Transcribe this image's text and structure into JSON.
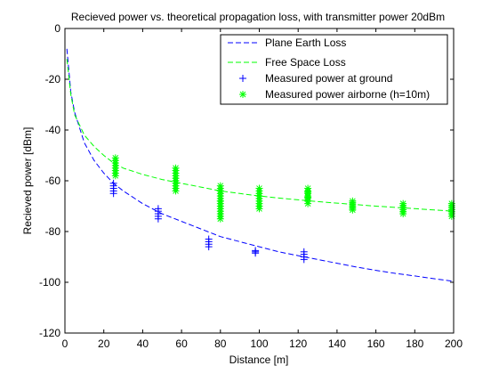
{
  "chart_data": {
    "type": "line",
    "title": "Recieved power vs. theoretical propagation loss, with transmitter power 20dBm",
    "xlabel": "Distance [m]",
    "ylabel": "Recieved power [dBm]",
    "xlim": [
      0,
      200
    ],
    "ylim": [
      -120,
      0
    ],
    "xticks": [
      0,
      20,
      40,
      60,
      80,
      100,
      120,
      140,
      160,
      180,
      200
    ],
    "yticks": [
      0,
      -20,
      -40,
      -60,
      -80,
      -100,
      -120
    ],
    "grid": false,
    "legend_position": "top-right",
    "series": [
      {
        "name": "Plane Earth Loss",
        "kind": "line",
        "style": "dashed",
        "color": "#0000ff",
        "x": [
          1,
          3,
          5,
          10,
          15,
          20,
          25,
          30,
          40,
          50,
          60,
          70,
          80,
          90,
          100,
          110,
          120,
          130,
          140,
          150,
          160,
          170,
          180,
          190,
          200
        ],
        "y": [
          -8,
          -25,
          -33,
          -45,
          -52,
          -57,
          -61,
          -64,
          -69,
          -73,
          -76,
          -79,
          -82,
          -84,
          -86,
          -88,
          -89.5,
          -91,
          -92.5,
          -94,
          -95.3,
          -96.5,
          -97.5,
          -98.6,
          -99.6
        ]
      },
      {
        "name": "Free Space Loss",
        "kind": "line",
        "style": "dashed",
        "color": "#00ff00",
        "x": [
          1,
          3,
          5,
          10,
          15,
          20,
          25,
          30,
          40,
          50,
          60,
          70,
          80,
          90,
          100,
          110,
          120,
          130,
          140,
          150,
          160,
          170,
          180,
          190,
          200
        ],
        "y": [
          -12,
          -26,
          -34,
          -42,
          -46.5,
          -50,
          -53,
          -55,
          -57.5,
          -59.5,
          -61,
          -62.5,
          -64,
          -65,
          -66,
          -66.8,
          -67.5,
          -68.2,
          -68.8,
          -69.4,
          -70,
          -70.5,
          -71,
          -71.5,
          -72
        ]
      },
      {
        "name": "Measured power at ground",
        "kind": "scatter",
        "marker": "+",
        "color": "#0000ff",
        "x": [
          25,
          25,
          25,
          25,
          25,
          48,
          48,
          48,
          48,
          48,
          74,
          74,
          74,
          74,
          98,
          98,
          98,
          123,
          123,
          123,
          123
        ],
        "y": [
          -61,
          -62,
          -63,
          -64,
          -65,
          -71,
          -72,
          -73,
          -74,
          -75,
          -83,
          -84,
          -85,
          -86,
          -87.5,
          -88,
          -88.5,
          -88,
          -89,
          -90,
          -91
        ]
      },
      {
        "name": "Measured power airborne (h=10m)",
        "kind": "scatter",
        "marker": "*",
        "color": "#00ff00",
        "x": [
          26,
          26,
          26,
          26,
          26,
          26,
          26,
          26,
          57,
          57,
          57,
          57,
          57,
          57,
          57,
          57,
          57,
          57,
          80,
          80,
          80,
          80,
          80,
          80,
          80,
          80,
          80,
          80,
          80,
          80,
          80,
          80,
          80,
          80,
          100,
          100,
          100,
          100,
          100,
          100,
          100,
          100,
          100,
          125,
          125,
          125,
          125,
          125,
          125,
          125,
          125,
          125,
          148,
          148,
          148,
          148,
          148,
          148,
          174,
          174,
          174,
          174,
          174,
          174,
          199,
          199,
          199,
          199,
          199,
          199,
          199
        ],
        "y": [
          -51,
          -52,
          -53,
          -54,
          -55,
          -56,
          -57,
          -58,
          -55,
          -56,
          -57,
          -58,
          -59,
          -60,
          -61,
          -62,
          -63,
          -64,
          -62,
          -63,
          -64,
          -65,
          -66,
          -67,
          -68,
          -69,
          -70,
          -71,
          -72,
          -73,
          -74,
          -75,
          -64,
          -68,
          -63,
          -64,
          -65,
          -66,
          -67,
          -68,
          -69,
          -70,
          -71,
          -63,
          -64,
          -65,
          -66,
          -67,
          -68,
          -69,
          -64.5,
          -66.5,
          -68,
          -68.7,
          -69.4,
          -70.1,
          -70.8,
          -71.5,
          -69,
          -69.8,
          -70.6,
          -71.4,
          -72.2,
          -73,
          -69,
          -69.8,
          -70.6,
          -71.4,
          -72.2,
          -73,
          -74
        ]
      }
    ]
  }
}
